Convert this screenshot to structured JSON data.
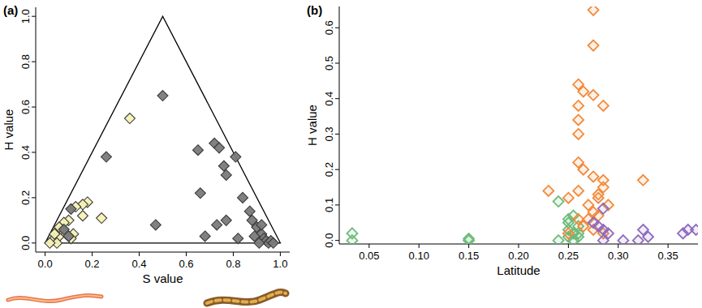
{
  "chart_data": [
    {
      "type": "ternary",
      "title": "(a)",
      "x_label": "S value",
      "y_label": "H value",
      "xlim": [
        -0.04,
        1.04
      ],
      "ylim": [
        -0.04,
        1.04
      ],
      "xticks": [
        {
          "value": 0,
          "label": "0.0"
        },
        0.2,
        0.4,
        0.6,
        0.8,
        {
          "value": 1,
          "label": "1.0"
        }
      ],
      "yticks": [
        {
          "value": 0,
          "label": "0.0"
        },
        0.2,
        0.4,
        0.6,
        0.8,
        {
          "value": 1,
          "label": "1.0"
        }
      ],
      "series": [
        {
          "color": "#f6f1b4",
          "marker": "diamond",
          "x": [
            0.36,
            0.24,
            0.18,
            0.16,
            0.13,
            0.16,
            0.1,
            0.08,
            0.05,
            0.04,
            0.06,
            0.07,
            0.03,
            0.05,
            0.09,
            0.12,
            0.06,
            0.04,
            0.11,
            0.02
          ],
          "values": [
            0.55,
            0.11,
            0.18,
            0.17,
            0.16,
            0.12,
            0.1,
            0.09,
            0.05,
            0.02,
            0.03,
            0.06,
            0.01,
            0.0,
            0.04,
            0.04,
            0.07,
            0.04,
            0.02,
            0.0
          ]
        },
        {
          "color": "#7a7a7a",
          "marker": "diamond",
          "x": [
            0.5,
            0.26,
            0.47,
            0.65,
            0.66,
            0.72,
            0.74,
            0.76,
            0.77,
            0.81,
            0.73,
            0.77,
            0.68,
            0.84,
            0.87,
            0.88,
            0.82,
            0.9,
            0.92,
            0.93,
            0.94,
            0.95,
            0.96,
            0.91,
            0.92,
            0.89,
            0.97,
            0.11,
            0.1,
            0.08
          ],
          "values": [
            0.65,
            0.38,
            0.08,
            0.41,
            0.22,
            0.44,
            0.42,
            0.34,
            0.3,
            0.38,
            0.08,
            0.1,
            0.03,
            0.2,
            0.14,
            0.1,
            0.02,
            0.07,
            0.04,
            0.02,
            0.01,
            0.0,
            0.01,
            0.0,
            0.08,
            0.03,
            0.0,
            0.15,
            0.03,
            0.06
          ]
        }
      ]
    },
    {
      "type": "scatter",
      "title": "(b)",
      "x_label": "Latitude",
      "y_label": "H value",
      "xlim": [
        0.02,
        0.38
      ],
      "ylim": [
        -0.01,
        0.66
      ],
      "xticks": [
        0.05,
        {
          "value": 0.1,
          "label": "0.10"
        },
        0.15,
        {
          "value": 0.2,
          "label": "0.20"
        },
        0.25,
        {
          "value": 0.3,
          "label": "0.30"
        },
        0.35
      ],
      "yticks": [
        {
          "value": 0,
          "label": "0.0"
        },
        0.1,
        0.2,
        0.3,
        0.4,
        0.5,
        0.6
      ],
      "series": [
        {
          "color": "#6dbb7a",
          "marker": "open-diamond",
          "x": [
            0.033,
            0.033,
            0.15,
            0.15,
            0.24,
            0.24,
            0.25,
            0.25,
            0.25,
            0.255,
            0.255,
            0.26,
            0.26,
            0.255,
            0.26,
            0.25
          ],
          "values": [
            0.02,
            0.0,
            0.0,
            0.005,
            0.11,
            0.0,
            0.06,
            0.05,
            0.03,
            0.02,
            0.0,
            0.04,
            0.01,
            0.07,
            0.02,
            0.01
          ]
        },
        {
          "color": "#f28a3a",
          "marker": "open-diamond",
          "x": [
            0.275,
            0.275,
            0.26,
            0.265,
            0.26,
            0.26,
            0.26,
            0.275,
            0.285,
            0.26,
            0.265,
            0.275,
            0.285,
            0.285,
            0.28,
            0.26,
            0.27,
            0.275,
            0.28,
            0.27,
            0.275,
            0.285,
            0.23,
            0.25,
            0.25,
            0.325,
            0.26,
            0.265,
            0.28,
            0.29
          ],
          "values": [
            0.65,
            0.55,
            0.44,
            0.42,
            0.38,
            0.34,
            0.3,
            0.41,
            0.38,
            0.22,
            0.2,
            0.18,
            0.17,
            0.15,
            0.13,
            0.14,
            0.1,
            0.08,
            0.07,
            0.06,
            0.03,
            0.02,
            0.14,
            0.12,
            0.02,
            0.17,
            0.06,
            0.04,
            0.12,
            0.1
          ]
        },
        {
          "color": "#8e6bbf",
          "marker": "open-diamond",
          "x": [
            0.285,
            0.28,
            0.285,
            0.285,
            0.29,
            0.305,
            0.32,
            0.325,
            0.33,
            0.365,
            0.37,
            0.378,
            0.275
          ],
          "values": [
            0.09,
            0.04,
            0.03,
            0.0,
            0.02,
            0.0,
            0.0,
            0.03,
            0.01,
            0.02,
            0.03,
            0.03,
            0.05
          ]
        }
      ]
    }
  ]
}
